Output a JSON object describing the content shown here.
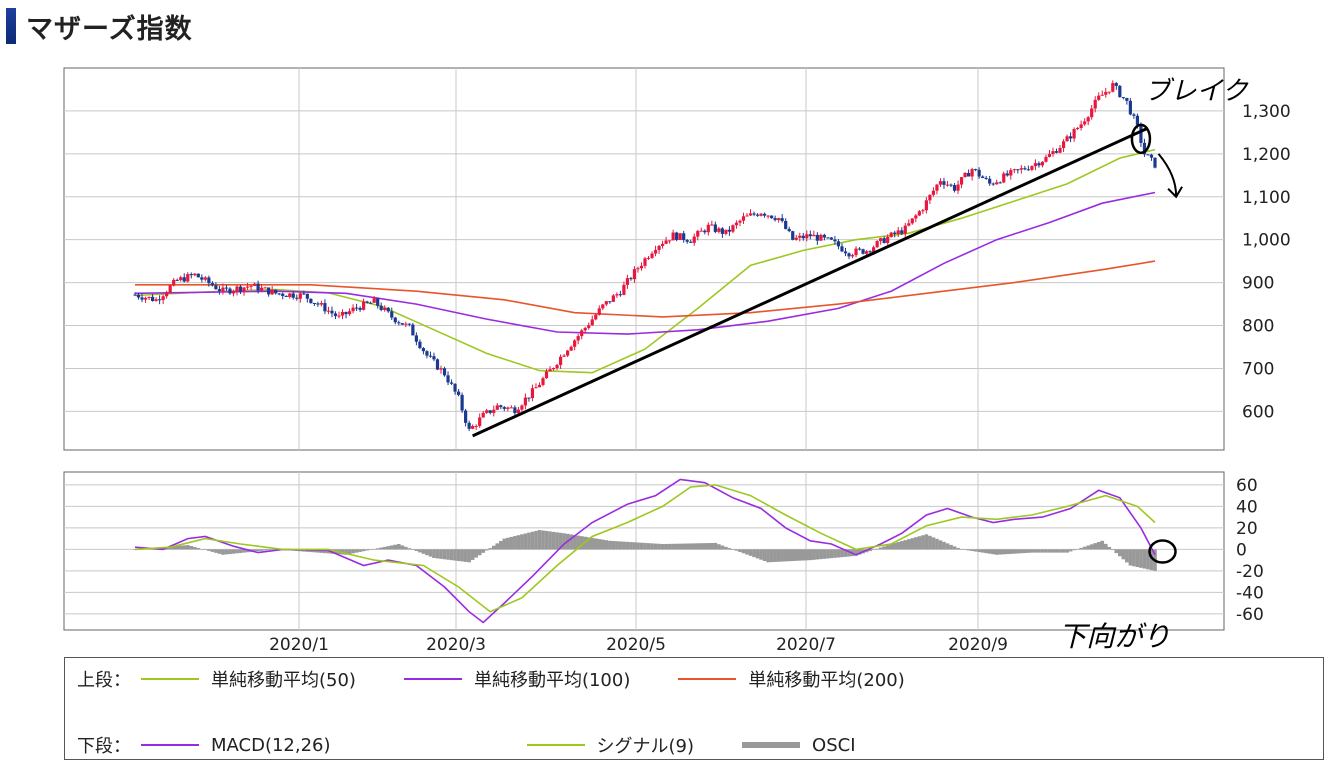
{
  "page": {
    "title": "マザーズ指数"
  },
  "chart_data": [
    {
      "type": "candlestick",
      "panel": "upper",
      "x_ticks": [
        "2020/1",
        "2020/3",
        "2020/5",
        "2020/7",
        "2020/9"
      ],
      "y_ticks": [
        "1,300",
        "1,200",
        "1,100",
        "1,000",
        "900",
        "800",
        "700",
        "600"
      ],
      "ylim": [
        510,
        1400
      ],
      "grid": true,
      "colors": {
        "up": "#e8173e",
        "down": "#1b3a8f"
      },
      "price_path": [
        {
          "t": 0,
          "v": 872
        },
        {
          "t": 6,
          "v": 860
        },
        {
          "t": 12,
          "v": 905
        },
        {
          "t": 17,
          "v": 918
        },
        {
          "t": 25,
          "v": 880
        },
        {
          "t": 33,
          "v": 893
        },
        {
          "t": 40,
          "v": 875
        },
        {
          "t": 48,
          "v": 870
        },
        {
          "t": 54,
          "v": 840
        },
        {
          "t": 58,
          "v": 818
        },
        {
          "t": 63,
          "v": 842
        },
        {
          "t": 68,
          "v": 855
        },
        {
          "t": 73,
          "v": 820
        },
        {
          "t": 78,
          "v": 795
        },
        {
          "t": 83,
          "v": 730
        },
        {
          "t": 88,
          "v": 688
        },
        {
          "t": 92,
          "v": 630
        },
        {
          "t": 95,
          "v": 555
        },
        {
          "t": 99,
          "v": 590
        },
        {
          "t": 103,
          "v": 612
        },
        {
          "t": 108,
          "v": 605
        },
        {
          "t": 113,
          "v": 645
        },
        {
          "t": 118,
          "v": 695
        },
        {
          "t": 123,
          "v": 748
        },
        {
          "t": 128,
          "v": 795
        },
        {
          "t": 133,
          "v": 845
        },
        {
          "t": 138,
          "v": 880
        },
        {
          "t": 143,
          "v": 935
        },
        {
          "t": 148,
          "v": 985
        },
        {
          "t": 153,
          "v": 1010
        },
        {
          "t": 158,
          "v": 1000
        },
        {
          "t": 163,
          "v": 1030
        },
        {
          "t": 168,
          "v": 1015
        },
        {
          "t": 173,
          "v": 1050
        },
        {
          "t": 178,
          "v": 1065
        },
        {
          "t": 183,
          "v": 1050
        },
        {
          "t": 187,
          "v": 1000
        },
        {
          "t": 192,
          "v": 1010
        },
        {
          "t": 198,
          "v": 995
        },
        {
          "t": 203,
          "v": 970
        },
        {
          "t": 208,
          "v": 975
        },
        {
          "t": 214,
          "v": 1005
        },
        {
          "t": 219,
          "v": 1025
        },
        {
          "t": 224,
          "v": 1075
        },
        {
          "t": 229,
          "v": 1140
        },
        {
          "t": 233,
          "v": 1120
        },
        {
          "t": 238,
          "v": 1165
        },
        {
          "t": 243,
          "v": 1130
        },
        {
          "t": 248,
          "v": 1150
        },
        {
          "t": 254,
          "v": 1170
        },
        {
          "t": 259,
          "v": 1190
        },
        {
          "t": 264,
          "v": 1225
        },
        {
          "t": 269,
          "v": 1270
        },
        {
          "t": 274,
          "v": 1330
        },
        {
          "t": 278,
          "v": 1360
        },
        {
          "t": 282,
          "v": 1320
        },
        {
          "t": 285,
          "v": 1260
        },
        {
          "t": 287,
          "v": 1200
        },
        {
          "t": 290,
          "v": 1175
        }
      ],
      "series": [
        {
          "name": "単純移動平均(50)",
          "color": "#9cc820",
          "points": [
            {
              "t": 0,
              "v": 870
            },
            {
              "t": 20,
              "v": 878
            },
            {
              "t": 40,
              "v": 884
            },
            {
              "t": 55,
              "v": 876
            },
            {
              "t": 70,
              "v": 845
            },
            {
              "t": 85,
              "v": 790
            },
            {
              "t": 100,
              "v": 735
            },
            {
              "t": 115,
              "v": 695
            },
            {
              "t": 130,
              "v": 690
            },
            {
              "t": 145,
              "v": 745
            },
            {
              "t": 160,
              "v": 840
            },
            {
              "t": 175,
              "v": 940
            },
            {
              "t": 190,
              "v": 975
            },
            {
              "t": 205,
              "v": 1000
            },
            {
              "t": 220,
              "v": 1015
            },
            {
              "t": 235,
              "v": 1050
            },
            {
              "t": 250,
              "v": 1090
            },
            {
              "t": 265,
              "v": 1130
            },
            {
              "t": 280,
              "v": 1190
            },
            {
              "t": 290,
              "v": 1210
            }
          ]
        },
        {
          "name": "単純移動平均(100)",
          "color": "#9a2be0",
          "points": [
            {
              "t": 0,
              "v": 875
            },
            {
              "t": 40,
              "v": 880
            },
            {
              "t": 60,
              "v": 875
            },
            {
              "t": 80,
              "v": 850
            },
            {
              "t": 100,
              "v": 815
            },
            {
              "t": 120,
              "v": 785
            },
            {
              "t": 140,
              "v": 780
            },
            {
              "t": 160,
              "v": 790
            },
            {
              "t": 180,
              "v": 810
            },
            {
              "t": 200,
              "v": 840
            },
            {
              "t": 215,
              "v": 880
            },
            {
              "t": 230,
              "v": 945
            },
            {
              "t": 245,
              "v": 1000
            },
            {
              "t": 260,
              "v": 1040
            },
            {
              "t": 275,
              "v": 1085
            },
            {
              "t": 290,
              "v": 1110
            }
          ]
        },
        {
          "name": "単純移動平均(200)",
          "color": "#e8552a",
          "points": [
            {
              "t": 0,
              "v": 895
            },
            {
              "t": 50,
              "v": 895
            },
            {
              "t": 80,
              "v": 880
            },
            {
              "t": 105,
              "v": 860
            },
            {
              "t": 125,
              "v": 830
            },
            {
              "t": 150,
              "v": 820
            },
            {
              "t": 175,
              "v": 830
            },
            {
              "t": 200,
              "v": 850
            },
            {
              "t": 225,
              "v": 875
            },
            {
              "t": 250,
              "v": 900
            },
            {
              "t": 275,
              "v": 930
            },
            {
              "t": 290,
              "v": 950
            }
          ]
        }
      ],
      "annotations": [
        {
          "type": "trendline",
          "t1": 96,
          "v1": 543,
          "t2": 288,
          "v2": 1260
        },
        {
          "type": "circle",
          "t": 286,
          "v": 1235
        },
        {
          "type": "arrow",
          "t1": 291,
          "v1": 1200,
          "t2": 296,
          "v2": 1100
        },
        {
          "type": "text",
          "t": 287,
          "v": 1350,
          "text": "ブレイク"
        }
      ]
    },
    {
      "type": "line",
      "panel": "lower",
      "y_ticks": [
        60,
        40,
        20,
        0,
        -20,
        -40,
        -60
      ],
      "ylim": [
        -75,
        72
      ],
      "grid": true,
      "series": [
        {
          "name": "MACD(12,26)",
          "color": "#9a2be0",
          "points": [
            {
              "t": 0,
              "v": 2
            },
            {
              "t": 8,
              "v": 0
            },
            {
              "t": 15,
              "v": 10
            },
            {
              "t": 20,
              "v": 12
            },
            {
              "t": 28,
              "v": 3
            },
            {
              "t": 35,
              "v": -3
            },
            {
              "t": 42,
              "v": 0
            },
            {
              "t": 55,
              "v": -1
            },
            {
              "t": 65,
              "v": -15
            },
            {
              "t": 72,
              "v": -10
            },
            {
              "t": 80,
              "v": -15
            },
            {
              "t": 88,
              "v": -35
            },
            {
              "t": 95,
              "v": -58
            },
            {
              "t": 99,
              "v": -68
            },
            {
              "t": 105,
              "v": -50
            },
            {
              "t": 113,
              "v": -25
            },
            {
              "t": 122,
              "v": 5
            },
            {
              "t": 130,
              "v": 25
            },
            {
              "t": 140,
              "v": 42
            },
            {
              "t": 148,
              "v": 50
            },
            {
              "t": 155,
              "v": 65
            },
            {
              "t": 162,
              "v": 62
            },
            {
              "t": 170,
              "v": 48
            },
            {
              "t": 178,
              "v": 38
            },
            {
              "t": 185,
              "v": 20
            },
            {
              "t": 192,
              "v": 8
            },
            {
              "t": 198,
              "v": 5
            },
            {
              "t": 205,
              "v": -5
            },
            {
              "t": 212,
              "v": 5
            },
            {
              "t": 218,
              "v": 15
            },
            {
              "t": 225,
              "v": 32
            },
            {
              "t": 231,
              "v": 38
            },
            {
              "t": 238,
              "v": 30
            },
            {
              "t": 244,
              "v": 25
            },
            {
              "t": 250,
              "v": 28
            },
            {
              "t": 258,
              "v": 30
            },
            {
              "t": 266,
              "v": 38
            },
            {
              "t": 274,
              "v": 55
            },
            {
              "t": 280,
              "v": 48
            },
            {
              "t": 286,
              "v": 20
            },
            {
              "t": 290,
              "v": -5
            }
          ]
        },
        {
          "name": "シグナル(9)",
          "color": "#9cc820",
          "points": [
            {
              "t": 0,
              "v": 0
            },
            {
              "t": 10,
              "v": 2
            },
            {
              "t": 20,
              "v": 10
            },
            {
              "t": 30,
              "v": 5
            },
            {
              "t": 42,
              "v": 0
            },
            {
              "t": 55,
              "v": 0
            },
            {
              "t": 68,
              "v": -10
            },
            {
              "t": 82,
              "v": -15
            },
            {
              "t": 92,
              "v": -35
            },
            {
              "t": 101,
              "v": -58
            },
            {
              "t": 110,
              "v": -45
            },
            {
              "t": 120,
              "v": -15
            },
            {
              "t": 130,
              "v": 12
            },
            {
              "t": 140,
              "v": 25
            },
            {
              "t": 150,
              "v": 40
            },
            {
              "t": 158,
              "v": 58
            },
            {
              "t": 165,
              "v": 60
            },
            {
              "t": 175,
              "v": 50
            },
            {
              "t": 185,
              "v": 32
            },
            {
              "t": 195,
              "v": 15
            },
            {
              "t": 205,
              "v": 0
            },
            {
              "t": 215,
              "v": 5
            },
            {
              "t": 225,
              "v": 22
            },
            {
              "t": 235,
              "v": 30
            },
            {
              "t": 245,
              "v": 28
            },
            {
              "t": 255,
              "v": 32
            },
            {
              "t": 265,
              "v": 40
            },
            {
              "t": 276,
              "v": 50
            },
            {
              "t": 285,
              "v": 40
            },
            {
              "t": 290,
              "v": 25
            }
          ]
        },
        {
          "name": "OSCI",
          "color": "#999999",
          "points": [
            {
              "t": 0,
              "v": 0
            },
            {
              "t": 15,
              "v": 4
            },
            {
              "t": 25,
              "v": -5
            },
            {
              "t": 40,
              "v": 0
            },
            {
              "t": 60,
              "v": -5
            },
            {
              "t": 75,
              "v": 5
            },
            {
              "t": 85,
              "v": -8
            },
            {
              "t": 95,
              "v": -12
            },
            {
              "t": 105,
              "v": 10
            },
            {
              "t": 115,
              "v": 18
            },
            {
              "t": 122,
              "v": 15
            },
            {
              "t": 135,
              "v": 8
            },
            {
              "t": 150,
              "v": 5
            },
            {
              "t": 165,
              "v": 6
            },
            {
              "t": 180,
              "v": -12
            },
            {
              "t": 192,
              "v": -10
            },
            {
              "t": 205,
              "v": -6
            },
            {
              "t": 215,
              "v": 5
            },
            {
              "t": 225,
              "v": 14
            },
            {
              "t": 235,
              "v": 0
            },
            {
              "t": 245,
              "v": -5
            },
            {
              "t": 255,
              "v": -3
            },
            {
              "t": 265,
              "v": -3
            },
            {
              "t": 275,
              "v": 8
            },
            {
              "t": 283,
              "v": -15
            },
            {
              "t": 290,
              "v": -20
            }
          ]
        }
      ],
      "annotations": [
        {
          "type": "circle",
          "t": 291,
          "v": -2
        },
        {
          "type": "text",
          "t": 283,
          "v": -62,
          "text": "下向がり"
        }
      ]
    }
  ],
  "legend": {
    "upper_label": "上段：",
    "lower_label": "下段：",
    "upper_items": [
      {
        "label": "単純移動平均(50)",
        "color": "#9cc820"
      },
      {
        "label": "単純移動平均(100)",
        "color": "#9a2be0"
      },
      {
        "label": "単純移動平均(200)",
        "color": "#e8552a"
      }
    ],
    "lower_items": [
      {
        "label": "MACD(12,26)",
        "color": "#9a2be0"
      },
      {
        "label": "シグナル(9)",
        "color": "#9cc820"
      },
      {
        "label": "OSCI",
        "color": "#999999"
      }
    ]
  }
}
